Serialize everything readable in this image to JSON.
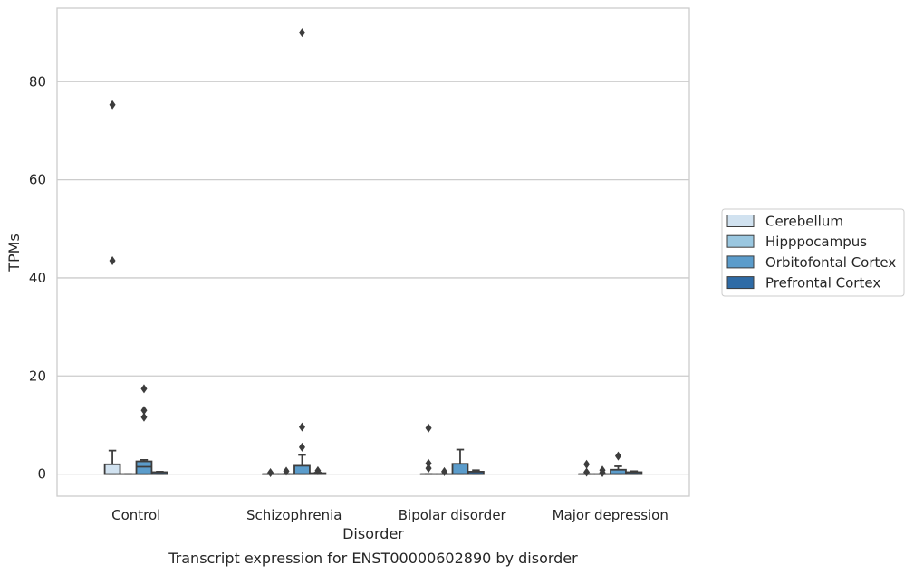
{
  "chart_data": {
    "type": "boxplot",
    "title": "",
    "xlabel": "Disorder",
    "ylabel": "TPMs",
    "caption": "Transcript expression for ENST00000602890 by disorder",
    "ylim": [
      -4.5,
      95
    ],
    "yticks": [
      0,
      20,
      40,
      60,
      80
    ],
    "grid": "horizontal",
    "legend_position": "right",
    "categories": [
      "Control",
      "Schizophrenia",
      "Bipolar disorder",
      "Major depression"
    ],
    "series": [
      {
        "name": "Cerebellum",
        "color": "#d1e2f0",
        "boxes": [
          {
            "q1": 0,
            "median": 0,
            "q3": 2.0,
            "whisker_low": 0,
            "whisker_high": 4.8,
            "outliers": [
              75.3,
              43.5
            ]
          },
          {
            "q1": 0,
            "median": 0,
            "q3": 0,
            "whisker_low": 0,
            "whisker_high": 0,
            "outliers": [
              0.3
            ]
          },
          {
            "q1": 0,
            "median": 0,
            "q3": 0,
            "whisker_low": 0,
            "whisker_high": 0,
            "outliers": [
              9.4,
              2.2,
              1.2
            ]
          },
          {
            "q1": 0,
            "median": 0,
            "q3": 0,
            "whisker_low": 0,
            "whisker_high": 0,
            "outliers": [
              2.0,
              0.4
            ]
          }
        ]
      },
      {
        "name": "Hipppocampus",
        "color": "#9ac7e0",
        "boxes": [
          {
            "q1": 0,
            "median": 0,
            "q3": 0,
            "whisker_low": 0,
            "whisker_high": 0,
            "outliers": []
          },
          {
            "q1": 0,
            "median": 0,
            "q3": 0,
            "whisker_low": 0,
            "whisker_high": 0,
            "outliers": [
              0.6
            ]
          },
          {
            "q1": 0,
            "median": 0,
            "q3": 0,
            "whisker_low": 0,
            "whisker_high": 0,
            "outliers": [
              0.5
            ]
          },
          {
            "q1": 0,
            "median": 0,
            "q3": 0,
            "whisker_low": 0,
            "whisker_high": 0,
            "outliers": [
              0.8,
              0.3
            ]
          }
        ]
      },
      {
        "name": "Orbitofontal Cortex",
        "color": "#5b9ccb",
        "boxes": [
          {
            "q1": 0,
            "median": 1.5,
            "q3": 2.6,
            "whisker_low": 0,
            "whisker_high": 2.9,
            "outliers": [
              17.4,
              13.0,
              11.6
            ]
          },
          {
            "q1": 0,
            "median": 0,
            "q3": 1.7,
            "whisker_low": 0,
            "whisker_high": 3.9,
            "outliers": [
              90.0,
              9.6,
              5.5
            ]
          },
          {
            "q1": 0,
            "median": 0,
            "q3": 2.1,
            "whisker_low": 0,
            "whisker_high": 5.0,
            "outliers": []
          },
          {
            "q1": 0,
            "median": 0,
            "q3": 0.9,
            "whisker_low": 0,
            "whisker_high": 1.6,
            "outliers": [
              3.7
            ]
          }
        ]
      },
      {
        "name": "Prefrontal Cortex",
        "color": "#2e6ba6",
        "boxes": [
          {
            "q1": 0,
            "median": 0,
            "q3": 0.4,
            "whisker_low": 0,
            "whisker_high": 0.5,
            "outliers": []
          },
          {
            "q1": 0,
            "median": 0,
            "q3": 0.2,
            "whisker_low": 0,
            "whisker_high": 0.3,
            "outliers": [
              0.7
            ]
          },
          {
            "q1": 0,
            "median": 0,
            "q3": 0.5,
            "whisker_low": 0,
            "whisker_high": 0.8,
            "outliers": []
          },
          {
            "q1": 0,
            "median": 0,
            "q3": 0.4,
            "whisker_low": 0,
            "whisker_high": 0.6,
            "outliers": []
          }
        ]
      }
    ]
  }
}
